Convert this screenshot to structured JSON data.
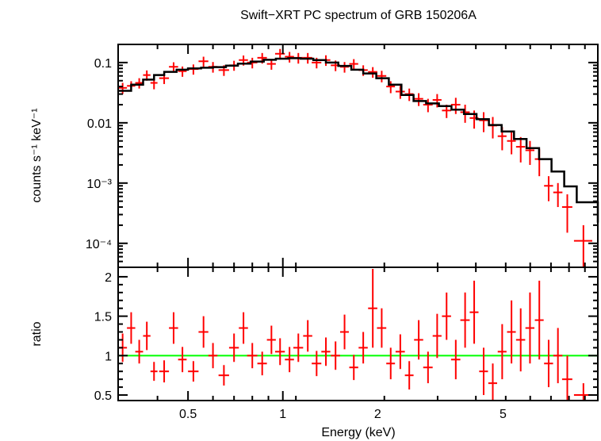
{
  "chart_data": [
    {
      "panel": "spectrum",
      "type": "scatter",
      "title": "Swift−XRT PC spectrum of GRB 150206A",
      "ylabel": "counts s⁻¹ keV⁻¹",
      "xlabel": "",
      "xscale": "log",
      "yscale": "log",
      "xlim": [
        0.3,
        10
      ],
      "ylim": [
        4e-05,
        0.2
      ],
      "x_ticks": [
        0.5,
        1,
        2,
        5
      ],
      "y_ticks": [
        0.0001,
        0.001,
        0.01,
        0.1
      ],
      "y_tick_labels": [
        "10⁻⁴",
        "10⁻³",
        "0.01",
        "0.1"
      ],
      "colors": {
        "data": "#ff0000",
        "model": "#000000"
      },
      "series": [
        {
          "type": "errorbar",
          "x": [
            0.31,
            0.33,
            0.35,
            0.37,
            0.39,
            0.42,
            0.45,
            0.48,
            0.52,
            0.56,
            0.6,
            0.65,
            0.7,
            0.75,
            0.8,
            0.86,
            0.92,
            0.98,
            1.05,
            1.12,
            1.2,
            1.28,
            1.37,
            1.47,
            1.57,
            1.68,
            1.8,
            1.93,
            2.06,
            2.2,
            2.36,
            2.52,
            2.7,
            2.89,
            3.09,
            3.31,
            3.54,
            3.79,
            4.05,
            4.34,
            4.64,
            4.97,
            5.32,
            5.69,
            6.09,
            6.52,
            6.98,
            7.47,
            8.0,
            9.0
          ],
          "xerr": [
            0.01,
            0.01,
            0.01,
            0.01,
            0.01,
            0.015,
            0.015,
            0.015,
            0.02,
            0.02,
            0.02,
            0.025,
            0.025,
            0.025,
            0.03,
            0.03,
            0.03,
            0.035,
            0.035,
            0.04,
            0.04,
            0.045,
            0.045,
            0.05,
            0.05,
            0.055,
            0.06,
            0.065,
            0.07,
            0.07,
            0.08,
            0.08,
            0.09,
            0.1,
            0.1,
            0.11,
            0.12,
            0.13,
            0.13,
            0.14,
            0.15,
            0.16,
            0.17,
            0.19,
            0.2,
            0.21,
            0.23,
            0.25,
            0.3,
            0.6
          ],
          "y": [
            0.038,
            0.041,
            0.046,
            0.062,
            0.046,
            0.055,
            0.085,
            0.072,
            0.078,
            0.105,
            0.085,
            0.075,
            0.09,
            0.11,
            0.1,
            0.12,
            0.095,
            0.14,
            0.125,
            0.12,
            0.12,
            0.1,
            0.11,
            0.09,
            0.085,
            0.095,
            0.075,
            0.07,
            0.06,
            0.04,
            0.033,
            0.03,
            0.025,
            0.02,
            0.024,
            0.016,
            0.02,
            0.015,
            0.012,
            0.011,
            0.009,
            0.006,
            0.005,
            0.004,
            0.0035,
            0.0025,
            0.0009,
            0.0007,
            0.0004,
            0.00011
          ],
          "yerr": [
            0.008,
            0.008,
            0.009,
            0.012,
            0.01,
            0.011,
            0.016,
            0.014,
            0.015,
            0.02,
            0.017,
            0.015,
            0.017,
            0.021,
            0.02,
            0.024,
            0.019,
            0.028,
            0.025,
            0.024,
            0.024,
            0.02,
            0.022,
            0.018,
            0.017,
            0.019,
            0.015,
            0.014,
            0.013,
            0.009,
            0.008,
            0.007,
            0.006,
            0.005,
            0.006,
            0.004,
            0.006,
            0.005,
            0.004,
            0.004,
            0.0035,
            0.0025,
            0.002,
            0.0018,
            0.0015,
            0.0012,
            0.0004,
            0.0003,
            0.00025,
            9e-05
          ]
        },
        {
          "type": "model",
          "x": [
            0.3,
            0.33,
            0.36,
            0.39,
            0.42,
            0.46,
            0.5,
            0.55,
            0.6,
            0.66,
            0.72,
            0.79,
            0.87,
            0.95,
            1.04,
            1.14,
            1.25,
            1.37,
            1.5,
            1.65,
            1.8,
            1.98,
            2.17,
            2.38,
            2.6,
            2.85,
            3.13,
            3.43,
            3.76,
            4.12,
            4.51,
            4.95,
            5.42,
            5.94,
            6.51,
            7.13,
            7.82,
            8.57,
            10
          ],
          "y": [
            0.034,
            0.043,
            0.052,
            0.062,
            0.07,
            0.076,
            0.08,
            0.082,
            0.084,
            0.089,
            0.096,
            0.104,
            0.111,
            0.116,
            0.118,
            0.116,
            0.11,
            0.1,
            0.088,
            0.076,
            0.066,
            0.055,
            0.043,
            0.029,
            0.023,
            0.021,
            0.019,
            0.0165,
            0.014,
            0.0115,
            0.0092,
            0.0072,
            0.0054,
            0.0038,
            0.0025,
            0.00155,
            0.00088,
            0.00048,
            0.00022
          ]
        }
      ]
    },
    {
      "panel": "ratio",
      "type": "scatter",
      "xlabel": "Energy (keV)",
      "ylabel": "ratio",
      "xscale": "log",
      "xlim": [
        0.3,
        10
      ],
      "ylim": [
        0.43,
        2.12
      ],
      "x_ticks": [
        0.5,
        1,
        2,
        5
      ],
      "y_ticks": [
        0.5,
        1,
        1.5,
        2
      ],
      "y_tick_labels": [
        "0.5",
        "1",
        "1.5",
        "2"
      ],
      "reference_line": 1,
      "colors": {
        "data": "#ff0000",
        "reference": "#00ff00"
      },
      "series": [
        {
          "type": "errorbar",
          "x": [
            0.31,
            0.33,
            0.35,
            0.37,
            0.39,
            0.42,
            0.45,
            0.48,
            0.52,
            0.56,
            0.6,
            0.65,
            0.7,
            0.75,
            0.8,
            0.86,
            0.92,
            0.98,
            1.05,
            1.12,
            1.2,
            1.28,
            1.37,
            1.47,
            1.57,
            1.68,
            1.8,
            1.93,
            2.06,
            2.2,
            2.36,
            2.52,
            2.7,
            2.89,
            3.09,
            3.31,
            3.54,
            3.79,
            4.05,
            4.34,
            4.64,
            4.97,
            5.32,
            5.69,
            6.09,
            6.52,
            6.98,
            7.47,
            8.0,
            9.0
          ],
          "xerr": [
            0.01,
            0.01,
            0.01,
            0.01,
            0.01,
            0.015,
            0.015,
            0.015,
            0.02,
            0.02,
            0.02,
            0.025,
            0.025,
            0.025,
            0.03,
            0.03,
            0.03,
            0.035,
            0.035,
            0.04,
            0.04,
            0.045,
            0.045,
            0.05,
            0.05,
            0.055,
            0.06,
            0.065,
            0.07,
            0.07,
            0.08,
            0.08,
            0.09,
            0.1,
            0.1,
            0.11,
            0.12,
            0.13,
            0.13,
            0.14,
            0.15,
            0.16,
            0.17,
            0.19,
            0.2,
            0.21,
            0.23,
            0.25,
            0.3,
            0.6
          ],
          "y": [
            1.1,
            1.35,
            1.05,
            1.25,
            0.8,
            0.8,
            1.35,
            0.95,
            0.8,
            1.3,
            1.0,
            0.75,
            1.1,
            1.35,
            1.0,
            0.9,
            1.2,
            1.05,
            0.95,
            1.1,
            1.25,
            0.9,
            1.05,
            1.0,
            1.3,
            0.85,
            1.1,
            1.6,
            1.35,
            0.9,
            1.05,
            0.75,
            1.2,
            0.85,
            1.25,
            1.5,
            0.95,
            1.45,
            1.55,
            0.8,
            0.65,
            1.05,
            1.3,
            1.2,
            1.35,
            1.45,
            0.9,
            1.0,
            0.7,
            0.5
          ],
          "yerr": [
            0.18,
            0.2,
            0.15,
            0.18,
            0.12,
            0.14,
            0.2,
            0.16,
            0.13,
            0.2,
            0.16,
            0.13,
            0.18,
            0.2,
            0.16,
            0.15,
            0.18,
            0.17,
            0.16,
            0.18,
            0.2,
            0.16,
            0.18,
            0.18,
            0.22,
            0.16,
            0.2,
            0.5,
            0.25,
            0.2,
            0.22,
            0.18,
            0.25,
            0.2,
            0.28,
            0.3,
            0.25,
            0.35,
            0.4,
            0.3,
            0.25,
            0.35,
            0.4,
            0.4,
            0.45,
            0.5,
            0.3,
            0.35,
            0.3,
            0.15
          ]
        }
      ]
    }
  ]
}
